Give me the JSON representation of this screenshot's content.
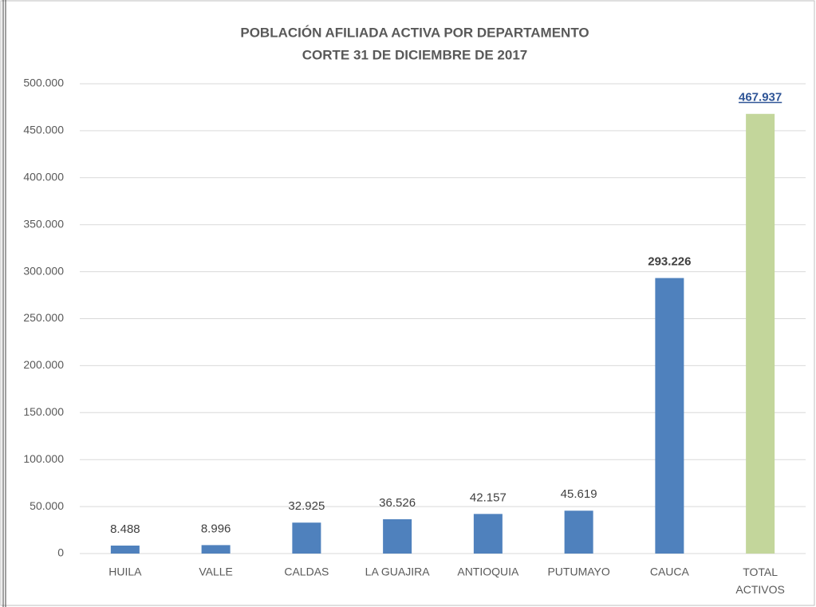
{
  "chart_data": {
    "type": "bar",
    "title": "POBLACIÓN AFILIADA ACTIVA POR DEPARTAMENTO",
    "subtitle": "CORTE 31 DE DICIEMBRE DE 2017",
    "categories": [
      "HUILA",
      "VALLE",
      "CALDAS",
      "LA GUAJIRA",
      "ANTIOQUIA",
      "PUTUMAYO",
      "CAUCA",
      "TOTAL ACTIVOS"
    ],
    "values": [
      8488,
      8996,
      32925,
      36526,
      42157,
      45619,
      293226,
      467937
    ],
    "value_labels": [
      "8.488",
      "8.996",
      "32.925",
      "36.526",
      "42.157",
      "45.619",
      "293.226",
      "467.937"
    ],
    "colors": [
      "#4f81bd",
      "#4f81bd",
      "#4f81bd",
      "#4f81bd",
      "#4f81bd",
      "#4f81bd",
      "#4f81bd",
      "#c3d69b"
    ],
    "ylim": [
      0,
      500000
    ],
    "yticks": [
      {
        "value": 0,
        "label": "0"
      },
      {
        "value": 50000,
        "label": "50.000"
      },
      {
        "value": 100000,
        "label": "100.000"
      },
      {
        "value": 150000,
        "label": "150.000"
      },
      {
        "value": 200000,
        "label": "200.000"
      },
      {
        "value": 250000,
        "label": "250.000"
      },
      {
        "value": 300000,
        "label": "300.000"
      },
      {
        "value": 350000,
        "label": "350.000"
      },
      {
        "value": 400000,
        "label": "400.000"
      },
      {
        "value": 450000,
        "label": "450.000"
      },
      {
        "value": 500000,
        "label": "500.000"
      }
    ],
    "grid": true
  }
}
